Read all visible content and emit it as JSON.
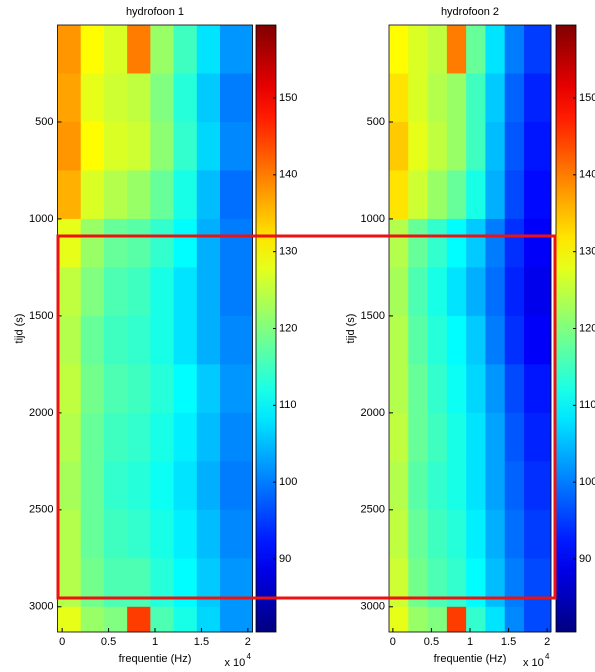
{
  "chart_data": [
    {
      "type": "heatmap",
      "title": "hydrofoon 1",
      "xlabel": "frequentie (Hz)",
      "ylabel": "tijd (s)",
      "x_multiplier": "x 10",
      "x_multiplier_exp": "4",
      "xlim": [
        -500,
        20500
      ],
      "ylim": [
        0,
        3130
      ],
      "xticks": [
        {
          "value": 0,
          "label": "0"
        },
        {
          "value": 5000,
          "label": "0.5"
        },
        {
          "value": 10000,
          "label": "1"
        },
        {
          "value": 15000,
          "label": "1.5"
        },
        {
          "value": 20000,
          "label": "2"
        }
      ],
      "yticks": [
        500,
        1000,
        1500,
        2000,
        2500,
        3000
      ],
      "clim": [
        80.5,
        159.5
      ],
      "cticks": [
        90,
        100,
        110,
        120,
        130,
        140,
        150
      ],
      "freq_bins": [
        -500,
        2000,
        4500,
        7000,
        9500,
        12000,
        14500,
        17000,
        20500
      ],
      "time_bins": [
        0,
        250,
        500,
        750,
        1000,
        1250,
        1500,
        1750,
        2000,
        2250,
        2500,
        2750,
        3000,
        3130
      ],
      "z": [
        [
          138,
          130,
          127,
          140,
          122,
          115,
          108,
          102
        ],
        [
          137,
          128,
          126,
          125,
          120,
          113,
          106,
          100
        ],
        [
          138,
          130,
          127,
          126,
          121,
          114,
          107,
          101
        ],
        [
          136,
          127,
          124,
          122,
          118,
          112,
          105,
          99
        ],
        [
          128,
          122,
          118,
          117,
          114,
          110,
          104,
          100
        ],
        [
          125,
          120,
          116,
          115,
          112,
          108,
          104,
          100
        ],
        [
          124,
          118,
          115,
          114,
          112,
          108,
          104,
          101
        ],
        [
          125,
          119,
          116,
          115,
          113,
          110,
          106,
          102
        ],
        [
          124,
          118,
          115,
          114,
          112,
          109,
          105,
          101
        ],
        [
          123,
          118,
          114,
          113,
          111,
          108,
          104,
          100
        ],
        [
          124,
          118,
          115,
          114,
          112,
          109,
          105,
          101
        ],
        [
          124,
          119,
          116,
          116,
          113,
          110,
          106,
          102
        ],
        [
          128,
          122,
          120,
          145,
          116,
          112,
          107,
          102
        ]
      ]
    },
    {
      "type": "heatmap",
      "title": "hydrofoon 2",
      "xlabel": "frequentie (Hz)",
      "ylabel": "tijd (s)",
      "x_multiplier": "x 10",
      "x_multiplier_exp": "4",
      "xlim": [
        -500,
        20500
      ],
      "ylim": [
        0,
        3130
      ],
      "xticks": [
        {
          "value": 0,
          "label": "0"
        },
        {
          "value": 5000,
          "label": "0.5"
        },
        {
          "value": 10000,
          "label": "1"
        },
        {
          "value": 15000,
          "label": "1.5"
        },
        {
          "value": 20000,
          "label": "2"
        }
      ],
      "yticks": [
        500,
        1000,
        1500,
        2000,
        2500,
        3000
      ],
      "clim": [
        80.5,
        159.5
      ],
      "cticks": [
        90,
        100,
        110,
        120,
        130,
        140,
        150
      ],
      "freq_bins": [
        -500,
        2000,
        4500,
        7000,
        9500,
        12000,
        14500,
        17000,
        20500
      ],
      "time_bins": [
        0,
        250,
        500,
        750,
        1000,
        1250,
        1500,
        1750,
        2000,
        2250,
        2500,
        2750,
        3000,
        3130
      ],
      "z": [
        [
          130,
          127,
          125,
          140,
          118,
          108,
          100,
          95
        ],
        [
          132,
          127,
          124,
          122,
          115,
          106,
          98,
          93
        ],
        [
          134,
          128,
          125,
          122,
          115,
          105,
          97,
          92
        ],
        [
          132,
          126,
          122,
          118,
          112,
          104,
          96,
          91
        ],
        [
          124,
          118,
          114,
          110,
          106,
          100,
          94,
          90
        ],
        [
          123,
          116,
          112,
          108,
          104,
          99,
          93,
          89
        ],
        [
          124,
          117,
          113,
          110,
          106,
          100,
          94,
          90
        ],
        [
          124,
          118,
          114,
          111,
          107,
          102,
          96,
          92
        ],
        [
          125,
          118,
          115,
          112,
          108,
          103,
          97,
          93
        ],
        [
          124,
          117,
          114,
          112,
          108,
          103,
          98,
          94
        ],
        [
          125,
          118,
          115,
          113,
          109,
          104,
          99,
          95
        ],
        [
          126,
          119,
          116,
          114,
          110,
          105,
          100,
          96
        ],
        [
          128,
          122,
          120,
          145,
          114,
          108,
          101,
          96
        ]
      ]
    }
  ]
}
